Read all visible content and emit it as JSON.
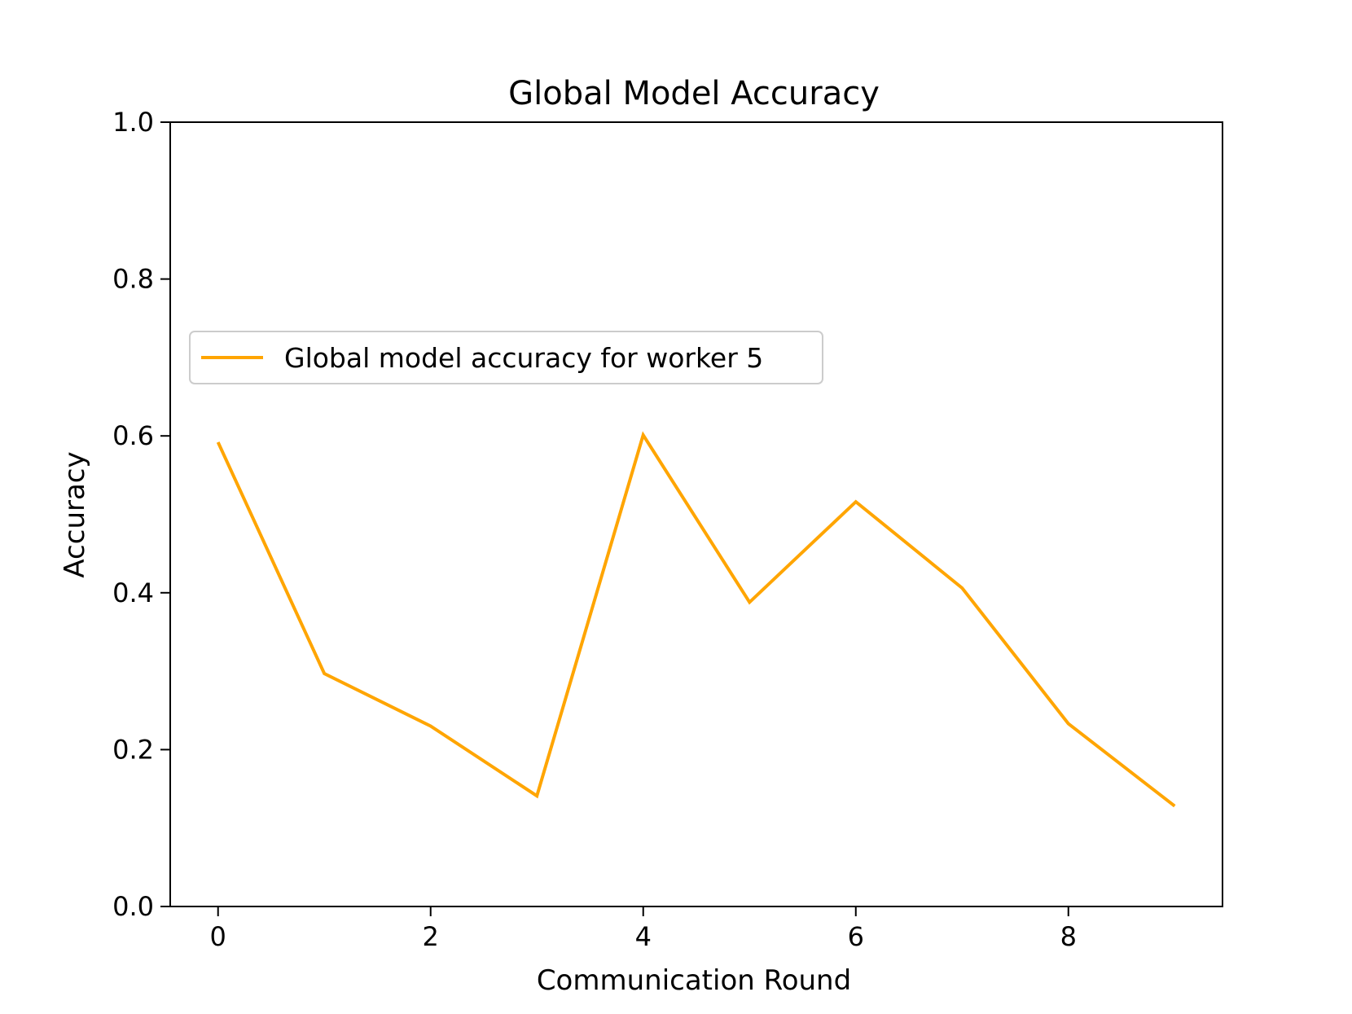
{
  "chart_data": {
    "type": "line",
    "title": "Global Model Accuracy",
    "xlabel": "Communication Round",
    "ylabel": "Accuracy",
    "xlim": [
      -0.45,
      9.45
    ],
    "ylim": [
      0.0,
      1.0
    ],
    "x_ticks": [
      0,
      2,
      4,
      6,
      8
    ],
    "x_tick_labels": [
      "0",
      "2",
      "4",
      "6",
      "8"
    ],
    "y_ticks": [
      0.0,
      0.2,
      0.4,
      0.6,
      0.8,
      1.0
    ],
    "y_tick_labels": [
      "0.0",
      "0.2",
      "0.4",
      "0.6",
      "0.8",
      "1.0"
    ],
    "grid": false,
    "legend_placement": "center-left",
    "series": [
      {
        "name": "Global model accuracy for worker 5",
        "color": "#FFA500",
        "x": [
          0,
          1,
          2,
          3,
          4,
          5,
          6,
          7,
          8,
          9
        ],
        "y": [
          0.592,
          0.297,
          0.23,
          0.141,
          0.601,
          0.388,
          0.516,
          0.406,
          0.233,
          0.128
        ]
      }
    ]
  }
}
